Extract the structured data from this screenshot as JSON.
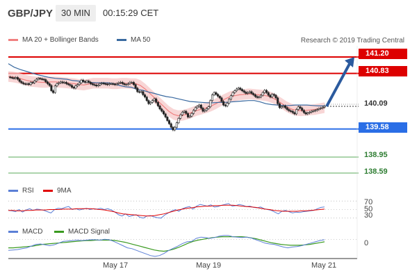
{
  "header": {
    "symbol": "GBP/JPY",
    "timeframe": "30 MIN",
    "time": "00:15:29 CET"
  },
  "credit": "Research © 2019 Trading Central",
  "colors": {
    "resistance": "#dd0000",
    "current": "#333333",
    "support": "#2a6ee6",
    "target": "#5aaa5a",
    "bollinger_band": "#f5c8c8",
    "bollinger_line": "#f08080",
    "ma50": "#3a6aa0",
    "rsi": "#5b7fd6",
    "rsi_ma": "#e00000",
    "macd": "#5b7fd6",
    "macd_signal": "#3a9a20",
    "arrow": "#2b5a9e"
  },
  "chart_data": [
    {
      "type": "line",
      "title": "",
      "legend": [
        {
          "name": "MA 20 + Bollinger Bands",
          "color": "#f08080"
        },
        {
          "name": "MA 50",
          "color": "#3a6aa0"
        }
      ],
      "ylim": [
        138.45,
        141.45
      ],
      "x_ticks": [
        "May 17",
        "May 19",
        "May 21"
      ],
      "price_levels": [
        {
          "value": 141.2,
          "label": "141.20",
          "kind": "resistance"
        },
        {
          "value": 140.83,
          "label": "140.83",
          "kind": "resistance"
        },
        {
          "value": 140.09,
          "label": "140.09",
          "kind": "current"
        },
        {
          "value": 139.58,
          "label": "139.58",
          "kind": "support"
        },
        {
          "value": 138.95,
          "label": "138.95",
          "kind": "target"
        },
        {
          "value": 138.59,
          "label": "138.59",
          "kind": "target"
        }
      ],
      "series": [
        {
          "name": "price",
          "values": [
            140.75,
            140.74,
            140.73,
            140.72,
            140.74,
            140.7,
            140.65,
            140.62,
            140.6,
            140.59,
            140.6,
            140.58,
            140.63,
            140.62,
            140.66,
            140.7,
            140.72,
            140.71,
            140.7,
            140.69,
            140.64,
            140.6,
            140.56,
            140.44,
            140.4,
            140.55,
            140.6,
            140.62,
            140.64,
            140.62,
            140.63,
            140.6,
            140.58,
            140.56,
            140.52,
            140.5,
            140.55,
            140.58,
            140.62,
            140.68,
            140.65,
            140.63,
            140.66,
            140.63,
            140.6,
            140.58,
            140.57,
            140.55,
            140.57,
            140.6,
            140.61,
            140.6,
            140.59,
            140.58,
            140.6,
            140.6,
            140.59,
            140.58,
            140.6,
            140.62,
            140.63,
            140.6,
            140.58,
            140.58,
            140.6,
            140.63,
            140.63,
            140.58,
            140.5,
            140.42,
            140.41,
            140.42,
            140.35,
            140.3,
            140.22,
            140.15,
            140.18,
            140.22,
            140.26,
            140.18,
            140.1,
            140.03,
            139.98,
            139.92,
            139.85,
            139.77,
            139.7,
            139.62,
            139.56,
            139.62,
            139.72,
            139.82,
            139.9,
            139.96,
            139.98,
            139.93,
            139.85,
            139.87,
            139.93,
            140.0,
            140.06,
            140.09,
            140.12,
            140.05,
            139.98,
            140.0,
            140.04,
            140.08,
            140.22,
            140.35,
            140.4,
            140.36,
            140.32,
            140.28,
            140.2,
            140.12,
            140.1,
            140.16,
            140.25,
            140.33,
            140.4,
            140.44,
            140.48,
            140.5,
            140.47,
            140.44,
            140.41,
            140.38,
            140.4,
            140.42,
            140.38,
            140.35,
            140.31,
            140.29,
            140.3,
            140.34,
            140.4,
            140.45,
            140.4,
            140.34,
            140.3,
            140.36,
            140.34,
            140.28,
            140.15,
            140.06,
            140.08,
            140.1,
            140.06,
            140.02,
            139.99,
            139.98,
            139.95,
            139.92,
            140.02,
            140.08,
            140.05,
            140.0,
            139.95,
            139.92,
            139.94,
            139.96,
            139.98,
            139.99,
            140.0,
            140.02,
            140.04,
            140.05,
            140.07,
            140.09
          ]
        },
        {
          "name": "MA 20",
          "values": [
            140.76,
            140.75,
            140.73,
            140.7,
            140.67,
            140.65,
            140.64,
            140.63,
            140.63,
            140.64,
            140.64,
            140.63,
            140.62,
            140.61,
            140.6,
            140.58,
            140.57,
            140.59,
            140.61,
            140.61,
            140.61,
            140.61,
            140.6,
            140.6,
            140.61,
            140.61,
            140.6,
            140.6,
            140.56,
            140.48,
            140.38,
            140.28,
            140.18,
            140.08,
            139.98,
            139.91,
            139.88,
            139.89,
            139.92,
            139.96,
            140.0,
            140.03,
            140.06,
            140.1,
            140.15,
            140.21,
            140.26,
            140.31,
            140.33,
            140.35,
            140.36,
            140.37,
            140.36,
            140.35,
            140.34,
            140.32,
            140.28,
            140.22,
            140.15,
            140.08,
            140.03,
            140.0,
            139.99,
            140.0,
            140.01,
            140.02,
            140.04,
            140.06
          ]
        },
        {
          "name": "MA 50",
          "values": [
            141.05,
            140.97,
            140.92,
            140.88,
            140.84,
            140.8,
            140.77,
            140.74,
            140.72,
            140.71,
            140.7,
            140.67,
            140.66,
            140.64,
            140.63,
            140.62,
            140.62,
            140.62,
            140.6,
            140.56,
            140.53,
            140.52,
            140.47,
            140.45,
            140.41,
            140.38,
            140.34,
            140.31,
            140.29,
            140.26,
            140.23,
            140.2,
            140.19,
            140.18,
            140.17,
            140.17,
            140.18,
            140.18,
            140.19,
            140.2,
            140.21,
            140.22,
            140.22,
            140.19,
            140.15,
            140.13,
            140.12,
            140.11,
            140.11,
            140.12,
            140.12,
            140.12,
            140.11,
            140.1,
            140.1
          ]
        }
      ],
      "forecast": {
        "from": 140.09,
        "to": 141.2
      }
    },
    {
      "type": "line",
      "legend": [
        {
          "name": "RSI",
          "color": "#5b7fd6"
        },
        {
          "name": "9MA",
          "color": "#e00000"
        }
      ],
      "ylim": [
        20,
        80
      ],
      "y_ticks": [
        70,
        50,
        30
      ],
      "series": [
        {
          "name": "RSI",
          "values": [
            48,
            47,
            45,
            50,
            44,
            49,
            52,
            48,
            51,
            50,
            48,
            45,
            42,
            50,
            53,
            52,
            55,
            57,
            50,
            52,
            49,
            51,
            53,
            50,
            52,
            51,
            53,
            50,
            52,
            49,
            44,
            38,
            35,
            40,
            34,
            36,
            38,
            32,
            30,
            35,
            36,
            33,
            31,
            30,
            37,
            42,
            47,
            50,
            46,
            52,
            55,
            57,
            51,
            58,
            62,
            60,
            58,
            61,
            56,
            57,
            60,
            62,
            64,
            58,
            59,
            62,
            60,
            57,
            58,
            55,
            54,
            56,
            52,
            50,
            48,
            44,
            40,
            46,
            48,
            45,
            42,
            44,
            43,
            45,
            46,
            47,
            48,
            52,
            55,
            56
          ]
        },
        {
          "name": "9MA",
          "values": [
            48,
            48,
            47,
            47,
            48,
            48,
            49,
            49,
            49,
            50,
            50,
            50,
            51,
            51,
            51,
            52,
            52,
            52,
            52,
            51,
            50,
            49,
            47,
            45,
            42,
            40,
            39,
            38,
            37,
            36,
            35,
            35,
            36,
            38,
            40,
            43,
            46,
            49,
            51,
            53,
            54,
            56,
            57,
            58,
            58,
            59,
            59,
            60,
            60,
            60,
            59,
            58,
            57,
            56,
            55,
            53,
            51,
            50,
            48,
            47,
            46,
            46,
            46,
            46,
            47,
            47,
            48,
            49,
            50,
            51
          ]
        }
      ]
    },
    {
      "type": "line",
      "legend": [
        {
          "name": "MACD",
          "color": "#5b7fd6"
        },
        {
          "name": "MACD Signal",
          "color": "#3a9a20"
        }
      ],
      "ylim": [
        -0.45,
        0.15
      ],
      "y_ticks": [
        0
      ],
      "series": [
        {
          "name": "MACD",
          "values": [
            -0.26,
            -0.25,
            -0.24,
            -0.22,
            -0.2,
            -0.16,
            -0.12,
            -0.11,
            -0.13,
            -0.15,
            -0.13,
            -0.09,
            -0.05,
            -0.04,
            -0.03,
            -0.02,
            -0.03,
            -0.02,
            -0.01,
            -0.01,
            -0.02,
            0.0,
            -0.01,
            -0.05,
            -0.1,
            -0.15,
            -0.2,
            -0.22,
            -0.26,
            -0.3,
            -0.34,
            -0.38,
            -0.4,
            -0.38,
            -0.33,
            -0.26,
            -0.21,
            -0.16,
            -0.1,
            -0.06,
            -0.05,
            0.02,
            0.05,
            0.04,
            0.02,
            0.04,
            0.07,
            0.09,
            0.09,
            0.06,
            0.05,
            0.04,
            0.05,
            0.03,
            -0.01,
            -0.05,
            -0.09,
            -0.11,
            -0.12,
            -0.15,
            -0.18,
            -0.2,
            -0.18,
            -0.17,
            -0.15,
            -0.12,
            -0.09,
            -0.06,
            -0.03,
            -0.01
          ]
        },
        {
          "name": "MACD Signal",
          "values": [
            -0.2,
            -0.2,
            -0.19,
            -0.18,
            -0.17,
            -0.16,
            -0.14,
            -0.12,
            -0.11,
            -0.1,
            -0.09,
            -0.08,
            -0.07,
            -0.06,
            -0.05,
            -0.04,
            -0.03,
            -0.03,
            -0.02,
            -0.02,
            -0.02,
            -0.02,
            -0.03,
            -0.05,
            -0.07,
            -0.1,
            -0.13,
            -0.16,
            -0.19,
            -0.22,
            -0.25,
            -0.27,
            -0.28,
            -0.26,
            -0.23,
            -0.19,
            -0.14,
            -0.09,
            -0.05,
            -0.02,
            0.0,
            0.02,
            0.04,
            0.05,
            0.06,
            0.06,
            0.06,
            0.06,
            0.06,
            0.05,
            0.03,
            0.01,
            -0.02,
            -0.05,
            -0.08,
            -0.1,
            -0.12,
            -0.13,
            -0.14,
            -0.14,
            -0.14,
            -0.13,
            -0.12,
            -0.1,
            -0.08,
            -0.06
          ]
        }
      ]
    }
  ]
}
